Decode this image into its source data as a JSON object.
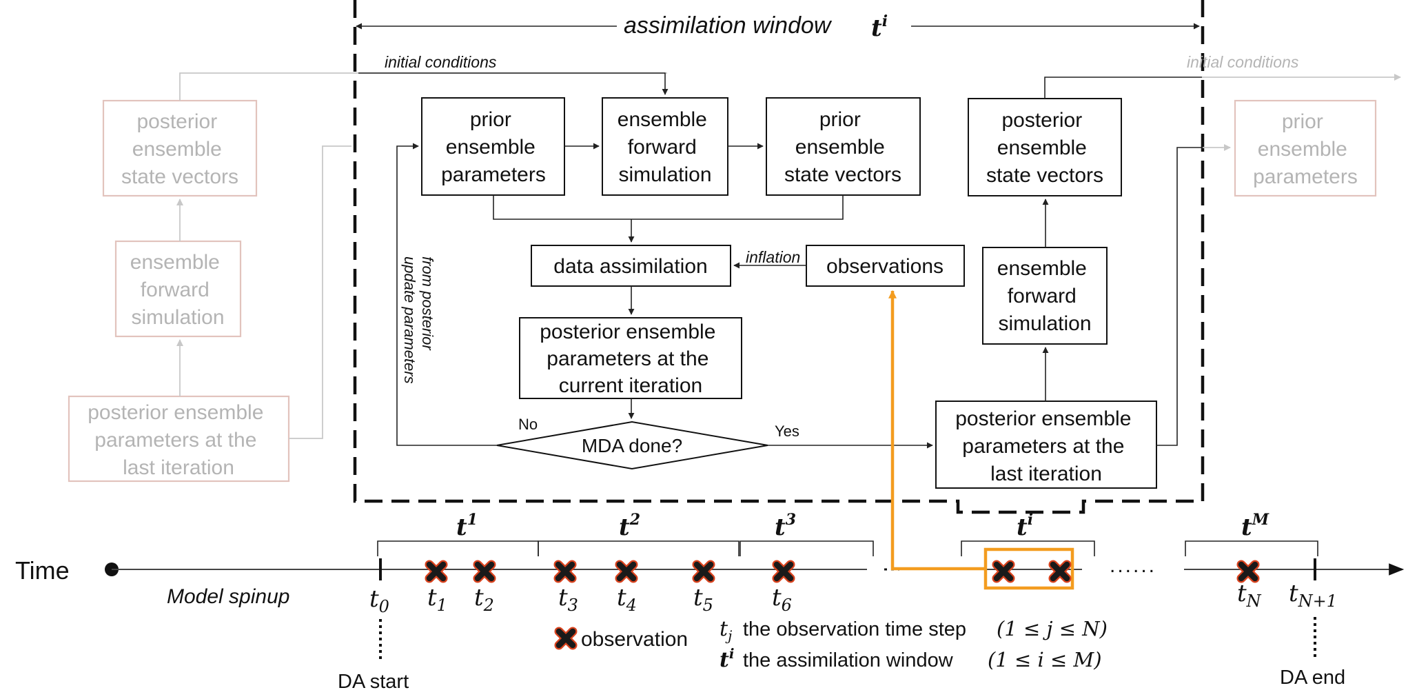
{
  "window_title": {
    "text": "assimilation window",
    "symbol": "t",
    "sup": "i"
  },
  "labels": {
    "initial_conditions_main": "initial conditions",
    "initial_conditions_faded": "initial conditions",
    "update_parameters": [
      "update parameters",
      "from posterior"
    ],
    "inflation": "inflation",
    "no": "No",
    "yes": "Yes",
    "time": "Time",
    "model_spinup": "Model spinup",
    "da_start": "DA start",
    "da_end": "DA end",
    "legend_observation": "observation",
    "legend_tj_text": "the observation time step",
    "legend_tj_range": "(1 ≤ j ≤ N)",
    "legend_ti_text": "the assimilation window",
    "legend_ti_range": "(1 ≤ i ≤ M)",
    "dots": "......"
  },
  "boxes": {
    "prior_params": [
      "prior",
      "ensemble",
      "parameters"
    ],
    "forward_sim": [
      "ensemble",
      "forward",
      "simulation"
    ],
    "prior_state": [
      "prior",
      "ensemble",
      "state vectors"
    ],
    "posterior_state": [
      "posterior",
      "ensemble",
      "state vectors"
    ],
    "data_assim": [
      "data assimilation"
    ],
    "observations": [
      "observations"
    ],
    "posterior_current": [
      "posterior ensemble",
      "parameters at the",
      "current iteration"
    ],
    "mda_done": [
      "MDA done?"
    ],
    "forward_sim_right": [
      "ensemble",
      "forward",
      "simulation"
    ],
    "posterior_last_right": [
      "posterior ensemble",
      "parameters at the",
      "last iteration"
    ],
    "faded_posterior_state": [
      "posterior",
      "ensemble",
      "state vectors"
    ],
    "faded_forward_sim": [
      "ensemble",
      "forward",
      "simulation"
    ],
    "faded_posterior_last": [
      "posterior ensemble",
      "parameters at the",
      "last iteration"
    ],
    "faded_prior_params": [
      "prior",
      "ensemble",
      "parameters"
    ]
  },
  "windows": [
    {
      "sym": "t",
      "sup": "1"
    },
    {
      "sym": "t",
      "sup": "2"
    },
    {
      "sym": "t",
      "sup": "3"
    },
    {
      "sym": "t",
      "sup": "i"
    },
    {
      "sym": "t",
      "sup": "M"
    }
  ],
  "ticks": [
    {
      "sym": "t",
      "sub": "0"
    },
    {
      "sym": "t",
      "sub": "1"
    },
    {
      "sym": "t",
      "sub": "2"
    },
    {
      "sym": "t",
      "sub": "3"
    },
    {
      "sym": "t",
      "sub": "4"
    },
    {
      "sym": "t",
      "sub": "5"
    },
    {
      "sym": "t",
      "sub": "6"
    },
    {
      "sym": "t",
      "sub": "N"
    },
    {
      "sym": "t",
      "sub": "N+1"
    }
  ],
  "legend_symbols": {
    "tj": {
      "sym": "t",
      "sub": "j"
    },
    "ti": {
      "sym": "t",
      "sup": "i"
    }
  },
  "colors": {
    "highlight": "#f39c1f",
    "marker_fill": "#1a1a1a",
    "marker_outline": "#d9431e",
    "faded_box": "#e2c3bd",
    "faded_text": "#b4b4b4"
  }
}
